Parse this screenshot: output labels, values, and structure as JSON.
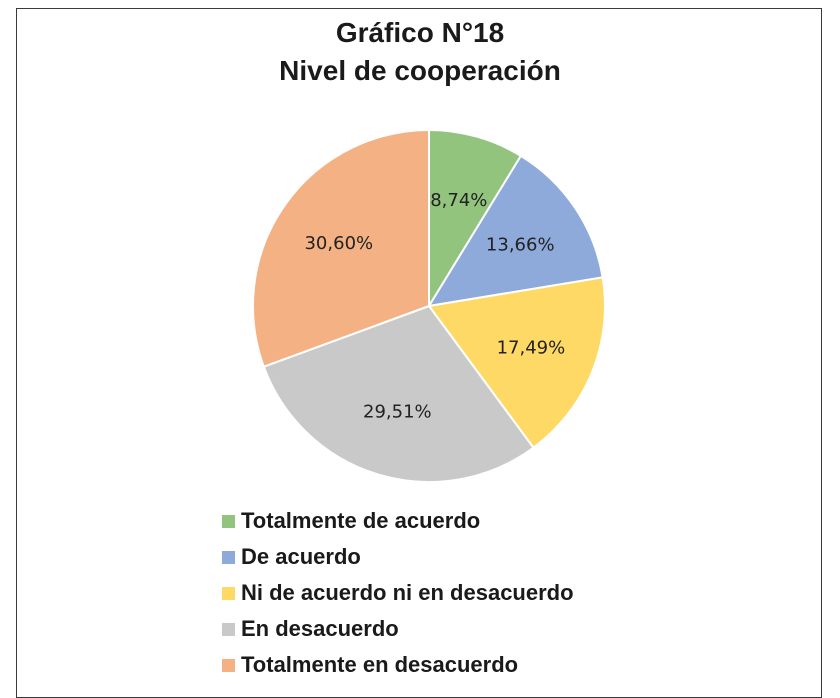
{
  "chart_data": {
    "type": "pie",
    "title": "Gráfico N°18",
    "subtitle": "Nivel de cooperación",
    "legend_position": "bottom",
    "slices": [
      {
        "name": "Totalmente de acuerdo",
        "value": 8.74,
        "label": "8,74%",
        "color": "#93c47d"
      },
      {
        "name": "De acuerdo",
        "value": 13.66,
        "label": "13,66%",
        "color": "#8eaadb"
      },
      {
        "name": "Ni de acuerdo ni en desacuerdo",
        "value": 17.49,
        "label": "17,49%",
        "color": "#ffd966"
      },
      {
        "name": "En desacuerdo",
        "value": 29.51,
        "label": "29,51%",
        "color": "#c9c9c9"
      },
      {
        "name": "Totalmente en desacuerdo",
        "value": 30.6,
        "label": "30,60%",
        "color": "#f4b183"
      }
    ]
  }
}
